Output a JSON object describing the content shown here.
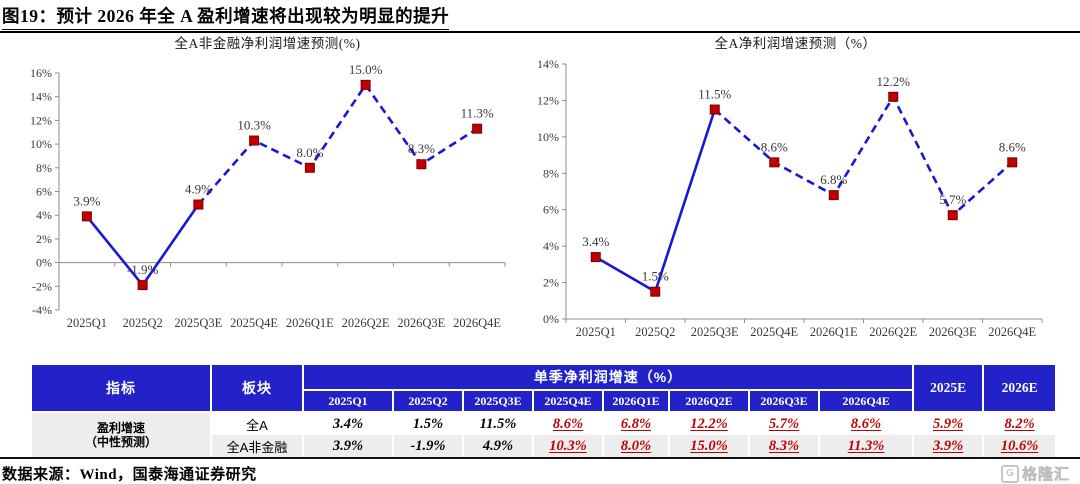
{
  "figure": {
    "title": "图19：预计 2026 年全 A 盈利增速将出现较为明显的提升",
    "source": "数据来源：Wind，国泰海通证券研究",
    "logo_text": "格隆汇",
    "logo_icon_label": "G"
  },
  "colors": {
    "line_blue": "#1717D6",
    "marker_red": "#C00000",
    "table_header_blue": "#2222C8",
    "table_red_value": "#C00000",
    "row_alt_gray": "#EDEDED"
  },
  "chart_data": [
    {
      "type": "line",
      "title": "全A非金融净利润增速预测(%)",
      "categories": [
        "2025Q1",
        "2025Q2",
        "2025Q3E",
        "2025Q4E",
        "2026Q1E",
        "2026Q2E",
        "2026Q3E",
        "2026Q4E"
      ],
      "values": [
        3.9,
        -1.9,
        4.9,
        10.3,
        8.0,
        15.0,
        8.3,
        11.3
      ],
      "labels": [
        "3.9%",
        "-1.9%",
        "4.9%",
        "10.3%",
        "8.0%",
        "15.0%",
        "8.3%",
        "11.3%"
      ],
      "ylim": [
        -4,
        16
      ],
      "ytick_step": 2,
      "xaxis_at": 0,
      "solid_until_index": 2,
      "grid": false,
      "legend": false,
      "marker": "square"
    },
    {
      "type": "line",
      "title": "全A净利润增速预测（%）",
      "categories": [
        "2025Q1",
        "2025Q2",
        "2025Q3E",
        "2025Q4E",
        "2026Q1E",
        "2026Q2E",
        "2026Q3E",
        "2026Q4E"
      ],
      "values": [
        3.4,
        1.5,
        11.5,
        8.6,
        6.8,
        12.2,
        5.7,
        8.6
      ],
      "labels": [
        "3.4%",
        "1.5%",
        "11.5%",
        "8.6%",
        "6.8%",
        "12.2%",
        "5.7%",
        "8.6%"
      ],
      "ylim": [
        0,
        14
      ],
      "ytick_step": 2,
      "xaxis_at": 0,
      "solid_until_index": 2,
      "grid": false,
      "legend": false,
      "marker": "square"
    }
  ],
  "table": {
    "metric_header": "指标",
    "sector_header": "板块",
    "group_header": "单季净利润增速（%）",
    "quarter_headers": [
      "2025Q1",
      "2025Q2",
      "2025Q3E",
      "2025Q4E",
      "2026Q1E",
      "2026Q2E",
      "2026Q3E",
      "2026Q4E"
    ],
    "year_headers": [
      "2025E",
      "2026E"
    ],
    "metric_lines": [
      "盈利增速",
      "（中性预测）"
    ],
    "rows": [
      {
        "sector": "全A",
        "quarter_values": [
          "3.4%",
          "1.5%",
          "11.5%",
          "8.6%",
          "6.8%",
          "12.2%",
          "5.7%",
          "8.6%"
        ],
        "year_values": [
          "5.9%",
          "8.2%"
        ],
        "red_from_index": 3
      },
      {
        "sector": "全A非金融",
        "quarter_values": [
          "3.9%",
          "-1.9%",
          "4.9%",
          "10.3%",
          "8.0%",
          "15.0%",
          "8.3%",
          "11.3%"
        ],
        "year_values": [
          "3.9%",
          "10.6%"
        ],
        "red_from_index": 3
      }
    ]
  }
}
